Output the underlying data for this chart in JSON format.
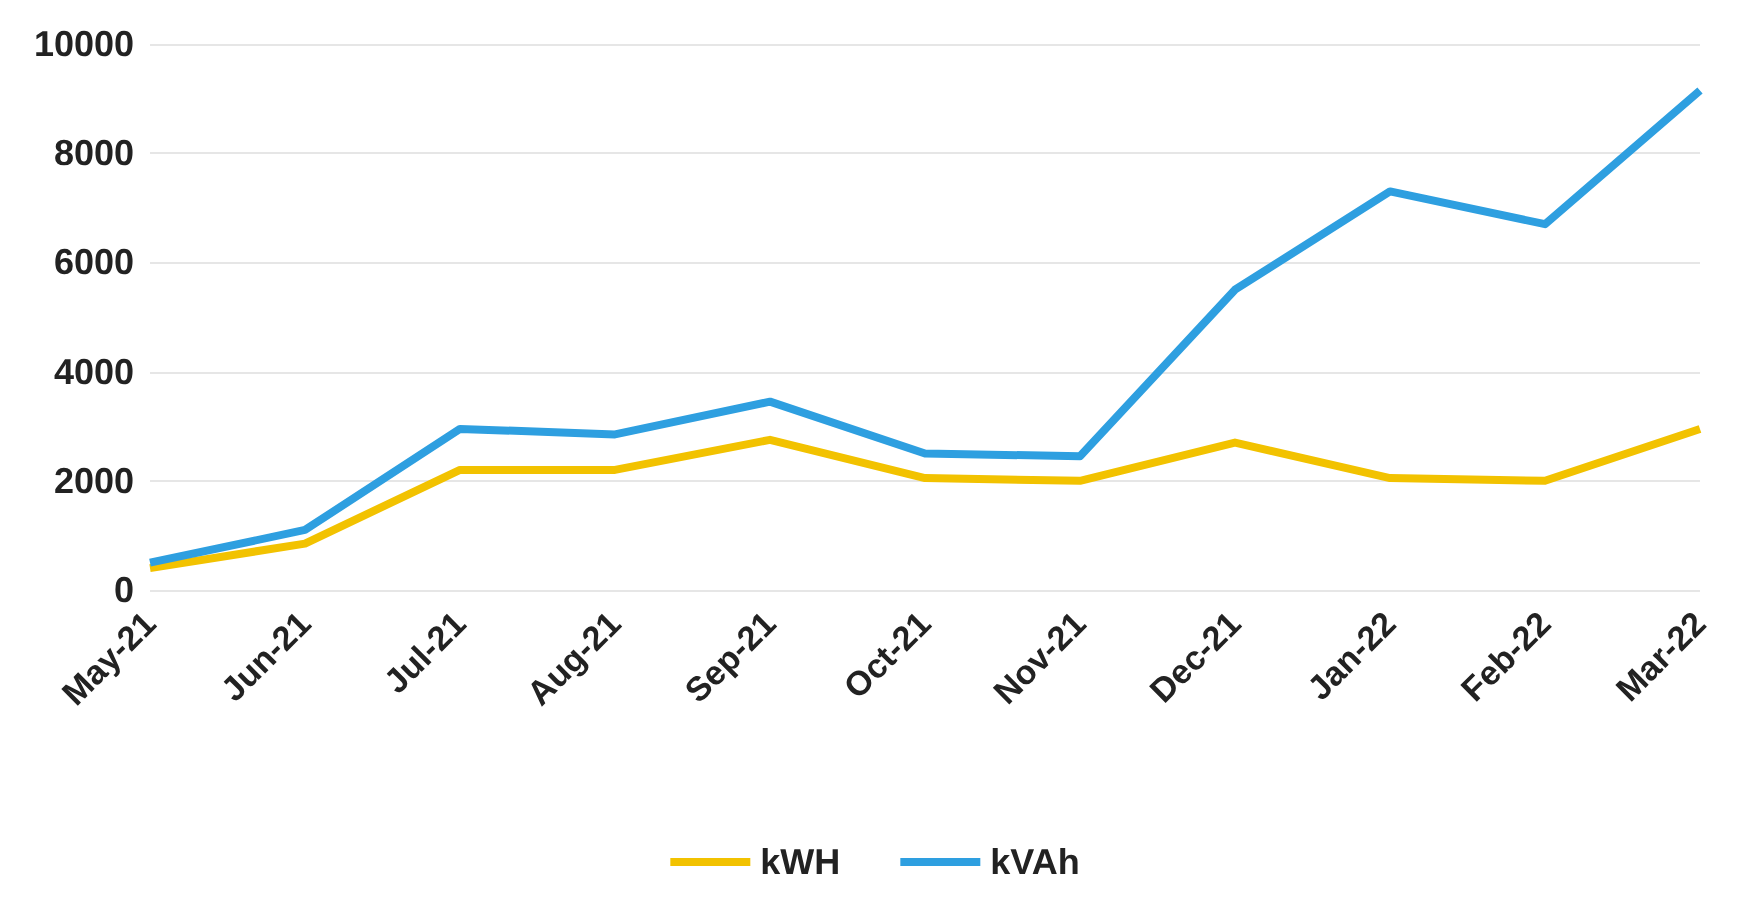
{
  "chart_data": {
    "type": "line",
    "categories": [
      "May-21",
      "Jun-21",
      "Jul-21",
      "Aug-21",
      "Sep-21",
      "Oct-21",
      "Nov-21",
      "Dec-21",
      "Jan-22",
      "Feb-22",
      "Mar-22"
    ],
    "series": [
      {
        "name": "kWH",
        "color": "#f2c200",
        "values": [
          400,
          850,
          2200,
          2200,
          2750,
          2050,
          2000,
          2700,
          2050,
          2000,
          2950
        ]
      },
      {
        "name": "kVAh",
        "color": "#2e9fe0",
        "values": [
          500,
          1100,
          2950,
          2850,
          3450,
          2500,
          2450,
          5500,
          7300,
          6700,
          9150
        ]
      }
    ],
    "ylim": [
      0,
      10000
    ],
    "yticks": [
      0,
      2000,
      4000,
      6000,
      8000,
      10000
    ],
    "grid": "y",
    "legend": "bottom",
    "marker": "none",
    "line_style": "solid"
  }
}
